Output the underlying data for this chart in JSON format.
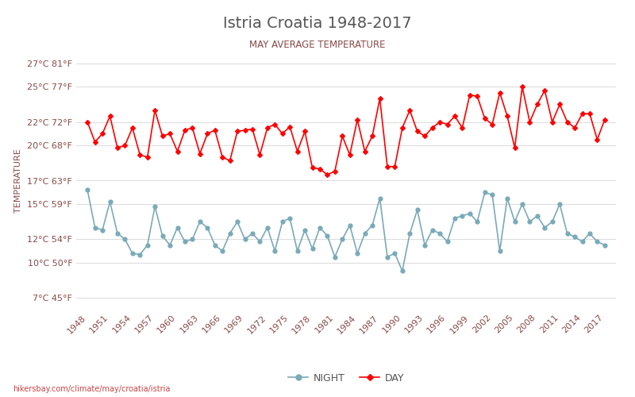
{
  "title": "Istria Croatia 1948-2017",
  "subtitle": "MAY AVERAGE TEMPERATURE",
  "ylabel": "TEMPERATURE",
  "footer": "hikersbay.com/climate/may/croatia/istria",
  "years": [
    1948,
    1949,
    1950,
    1951,
    1952,
    1953,
    1954,
    1955,
    1956,
    1957,
    1958,
    1959,
    1960,
    1961,
    1962,
    1963,
    1964,
    1965,
    1966,
    1967,
    1968,
    1969,
    1970,
    1971,
    1972,
    1973,
    1974,
    1975,
    1976,
    1977,
    1978,
    1979,
    1980,
    1981,
    1982,
    1983,
    1984,
    1985,
    1986,
    1987,
    1988,
    1989,
    1990,
    1991,
    1992,
    1993,
    1994,
    1995,
    1996,
    1997,
    1998,
    1999,
    2000,
    2001,
    2002,
    2003,
    2004,
    2005,
    2006,
    2007,
    2008,
    2009,
    2010,
    2011,
    2012,
    2013,
    2014,
    2015,
    2016,
    2017
  ],
  "day_temps": [
    22.0,
    20.3,
    21.0,
    22.5,
    19.8,
    20.0,
    21.5,
    19.2,
    19.0,
    23.0,
    20.8,
    21.0,
    19.5,
    21.3,
    21.5,
    19.3,
    21.0,
    21.3,
    19.0,
    18.7,
    21.2,
    21.3,
    21.4,
    19.2,
    21.5,
    21.8,
    21.0,
    21.6,
    19.5,
    21.2,
    18.1,
    18.0,
    17.5,
    17.8,
    20.8,
    19.2,
    22.2,
    19.5,
    20.8,
    24.0,
    18.2,
    18.2,
    21.5,
    23.0,
    21.2,
    20.8,
    21.5,
    22.0,
    21.8,
    22.5,
    21.5,
    24.3,
    24.2,
    22.3,
    21.8,
    24.5,
    22.5,
    19.8,
    25.0,
    22.0,
    23.5,
    24.7,
    22.0,
    23.5,
    22.0,
    21.5,
    22.7,
    22.7,
    20.5,
    22.2
  ],
  "night_temps": [
    16.2,
    13.0,
    12.8,
    15.2,
    12.5,
    12.0,
    10.8,
    10.7,
    11.5,
    14.8,
    12.3,
    11.5,
    13.0,
    11.8,
    12.0,
    13.5,
    13.0,
    11.5,
    11.0,
    12.5,
    13.5,
    12.0,
    12.5,
    11.8,
    13.0,
    11.0,
    13.5,
    13.8,
    11.0,
    12.8,
    11.2,
    13.0,
    12.3,
    10.5,
    12.0,
    13.2,
    10.8,
    12.5,
    13.2,
    15.5,
    10.5,
    10.8,
    9.3,
    12.5,
    14.5,
    11.5,
    12.8,
    12.5,
    11.8,
    13.8,
    14.0,
    14.2,
    13.5,
    16.0,
    15.8,
    11.0,
    15.5,
    13.5,
    15.0,
    13.5,
    14.0,
    13.0,
    13.5,
    15.0,
    12.5,
    12.2,
    11.8,
    12.5,
    11.8,
    11.5
  ],
  "day_color": "#ff0000",
  "night_color": "#7aaab8",
  "background_color": "#ffffff",
  "grid_color": "#dddddd",
  "title_color": "#555555",
  "subtitle_color": "#8a4a4a",
  "label_color": "#8a4a4a",
  "tick_color": "#8a4a4a",
  "yticks_c": [
    7,
    10,
    12,
    15,
    17,
    20,
    22,
    25,
    27
  ],
  "yticks_f": [
    45,
    50,
    54,
    59,
    63,
    68,
    72,
    77,
    81
  ],
  "ylim": [
    6,
    28
  ],
  "xtick_years": [
    1948,
    1951,
    1954,
    1957,
    1960,
    1963,
    1966,
    1969,
    1972,
    1975,
    1978,
    1981,
    1984,
    1987,
    1990,
    1993,
    1996,
    1999,
    2002,
    2005,
    2008,
    2011,
    2014,
    2017
  ]
}
